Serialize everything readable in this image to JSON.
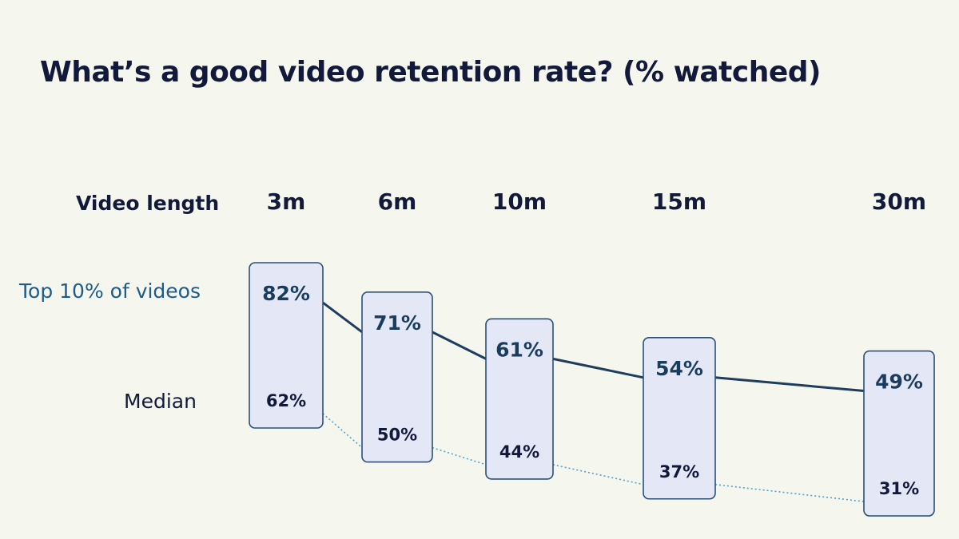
{
  "title": "What’s a good video retention rate? (% watched)",
  "row_labels": {
    "x_header": "Video length",
    "top": "Top 10% of videos",
    "median": "Median"
  },
  "chart_data": {
    "type": "line",
    "title": "What’s a good video retention rate? (% watched)",
    "xlabel": "Video length",
    "ylabel": "",
    "categories": [
      "3m",
      "6m",
      "10m",
      "15m",
      "30m"
    ],
    "x_minutes": [
      3,
      6,
      10,
      15,
      30
    ],
    "ylim": [
      0,
      100
    ],
    "grid": false,
    "series": [
      {
        "name": "Top 10% of videos",
        "values": [
          82,
          71,
          61,
          54,
          49
        ],
        "labels": [
          "82%",
          "71%",
          "61%",
          "54%",
          "49%"
        ],
        "color": "#1f3e5f",
        "style": "solid"
      },
      {
        "name": "Median",
        "values": [
          62,
          50,
          44,
          37,
          31
        ],
        "labels": [
          "62%",
          "50%",
          "44%",
          "37%",
          "31%"
        ],
        "color": "#4fa2cc",
        "style": "dotted"
      }
    ],
    "colors": {
      "background": "#f5f7ee",
      "range_box": "#e4e8f6",
      "box_border": "#2b4f7a",
      "text_dark": "#12193a",
      "text_blue": "#1d5b8a"
    }
  }
}
